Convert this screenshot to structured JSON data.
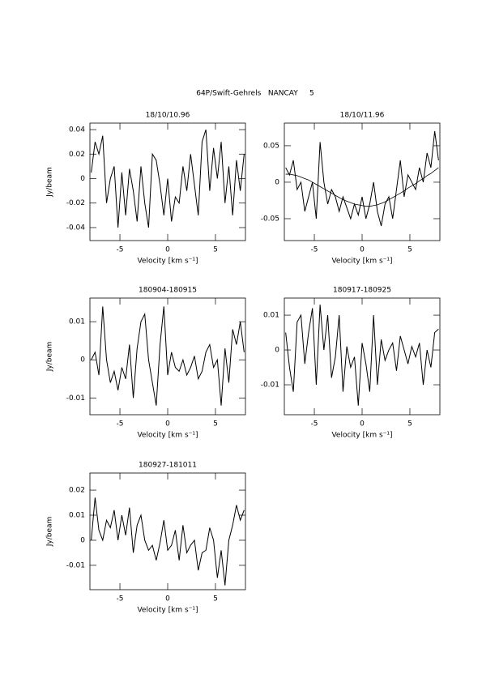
{
  "title": "64P/Swift-Gehrels   NANCAY     5",
  "chart_data": [
    {
      "type": "line",
      "title": "18/10/10.96",
      "xlabel": "Velocity [km s⁻¹]",
      "ylabel": "Jy/beam",
      "x": [
        -8,
        -7.6,
        -7.2,
        -6.8,
        -6.4,
        -6,
        -5.6,
        -5.2,
        -4.8,
        -4.4,
        -4,
        -3.6,
        -3.2,
        -2.8,
        -2.4,
        -2,
        -1.6,
        -1.2,
        -0.8,
        -0.4,
        0,
        0.4,
        0.8,
        1.2,
        1.6,
        2,
        2.4,
        2.8,
        3.2,
        3.6,
        4,
        4.4,
        4.8,
        5.2,
        5.6,
        6,
        6.4,
        6.8,
        7.2,
        7.6,
        8
      ],
      "series": [
        {
          "color": "#000000",
          "values": [
            0.005,
            0.03,
            0.02,
            0.035,
            -0.02,
            0.0,
            0.01,
            -0.04,
            0.005,
            -0.03,
            0.008,
            -0.01,
            -0.035,
            0.01,
            -0.02,
            -0.04,
            0.02,
            0.015,
            -0.005,
            -0.03,
            0.0,
            -0.035,
            -0.015,
            -0.02,
            0.01,
            -0.01,
            0.02,
            -0.005,
            -0.03,
            0.03,
            0.04,
            -0.01,
            0.025,
            0.0,
            0.03,
            -0.02,
            0.01,
            -0.03,
            0.015,
            -0.01,
            0.02
          ]
        }
      ],
      "xlim": [
        -8.14,
        8.14
      ],
      "xticks": [
        -5,
        0,
        5
      ],
      "ylim": [
        -0.0506,
        0.0453
      ],
      "yticks": [
        -0.04,
        -0.02,
        0,
        0.02,
        0.04
      ]
    },
    {
      "type": "line",
      "title": "18/10/11.96",
      "xlabel": "Velocity [km s⁻¹]",
      "x": [
        -8,
        -7.6,
        -7.2,
        -6.8,
        -6.4,
        -6,
        -5.6,
        -5.2,
        -4.8,
        -4.4,
        -4,
        -3.6,
        -3.2,
        -2.8,
        -2.4,
        -2,
        -1.6,
        -1.2,
        -0.8,
        -0.4,
        0,
        0.4,
        0.8,
        1.2,
        1.6,
        2,
        2.4,
        2.8,
        3.2,
        3.6,
        4,
        4.4,
        4.8,
        5.2,
        5.6,
        6,
        6.4,
        6.8,
        7.2,
        7.6,
        8
      ],
      "series": [
        {
          "color": "#000000",
          "values": [
            0.02,
            0.01,
            0.03,
            -0.01,
            0.0,
            -0.04,
            -0.02,
            0.0,
            -0.05,
            0.055,
            0.0,
            -0.03,
            -0.01,
            -0.02,
            -0.04,
            -0.02,
            -0.035,
            -0.05,
            -0.03,
            -0.045,
            -0.02,
            -0.05,
            -0.03,
            0.0,
            -0.04,
            -0.06,
            -0.03,
            -0.02,
            -0.05,
            -0.01,
            0.03,
            -0.02,
            0.01,
            0.0,
            -0.01,
            0.02,
            0.0,
            0.04,
            0.02,
            0.07,
            0.03
          ]
        },
        {
          "color": "#000000",
          "values": [
            0.011,
            0.011,
            0.01,
            0.009,
            0.007,
            0.005,
            0.003,
            0.0,
            -0.003,
            -0.006,
            -0.009,
            -0.012,
            -0.015,
            -0.018,
            -0.021,
            -0.024,
            -0.026,
            -0.028,
            -0.03,
            -0.031,
            -0.032,
            -0.033,
            -0.033,
            -0.032,
            -0.031,
            -0.029,
            -0.027,
            -0.024,
            -0.021,
            -0.018,
            -0.015,
            -0.012,
            -0.008,
            -0.005,
            -0.002,
            0.002,
            0.005,
            0.009,
            0.012,
            0.016,
            0.02
          ]
        }
      ],
      "xlim": [
        -8.14,
        8.14
      ],
      "xticks": [
        -5,
        0,
        5
      ],
      "ylim": [
        -0.08,
        0.081
      ],
      "yticks": [
        -0.05,
        0,
        0.05
      ]
    },
    {
      "type": "line",
      "title": "180904-180915",
      "xlabel": "Velocity [km s⁻¹]",
      "ylabel": "Jy/beam",
      "x": [
        -8,
        -7.6,
        -7.2,
        -6.8,
        -6.4,
        -6,
        -5.6,
        -5.2,
        -4.8,
        -4.4,
        -4,
        -3.6,
        -3.2,
        -2.8,
        -2.4,
        -2,
        -1.6,
        -1.2,
        -0.8,
        -0.4,
        0,
        0.4,
        0.8,
        1.2,
        1.6,
        2,
        2.4,
        2.8,
        3.2,
        3.6,
        4,
        4.4,
        4.8,
        5.2,
        5.6,
        6,
        6.4,
        6.8,
        7.2,
        7.6,
        8
      ],
      "series": [
        {
          "color": "#000000",
          "values": [
            0.0,
            0.002,
            -0.004,
            0.014,
            0.0,
            -0.006,
            -0.003,
            -0.008,
            -0.002,
            -0.005,
            0.004,
            -0.01,
            0.003,
            0.01,
            0.012,
            0.0,
            -0.006,
            -0.012,
            0.004,
            0.014,
            -0.004,
            0.002,
            -0.002,
            -0.003,
            0.0,
            -0.004,
            -0.002,
            0.001,
            -0.005,
            -0.003,
            0.002,
            0.004,
            -0.002,
            0.0,
            -0.012,
            0.003,
            -0.006,
            0.008,
            0.004,
            0.01,
            0.002
          ]
        }
      ],
      "xlim": [
        -8.14,
        8.14
      ],
      "xticks": [
        -5,
        0,
        5
      ],
      "ylim": [
        -0.0144,
        0.0162
      ],
      "yticks": [
        -0.01,
        0,
        0.01
      ]
    },
    {
      "type": "line",
      "title": "180917-180925",
      "xlabel": "Velocity [km s⁻¹]",
      "x": [
        -8,
        -7.6,
        -7.2,
        -6.8,
        -6.4,
        -6,
        -5.6,
        -5.2,
        -4.8,
        -4.4,
        -4,
        -3.6,
        -3.2,
        -2.8,
        -2.4,
        -2,
        -1.6,
        -1.2,
        -0.8,
        -0.4,
        0,
        0.4,
        0.8,
        1.2,
        1.6,
        2,
        2.4,
        2.8,
        3.2,
        3.6,
        4,
        4.4,
        4.8,
        5.2,
        5.6,
        6,
        6.4,
        6.8,
        7.2,
        7.6,
        8
      ],
      "series": [
        {
          "color": "#000000",
          "values": [
            0.005,
            -0.005,
            -0.012,
            0.008,
            0.01,
            -0.004,
            0.005,
            0.012,
            -0.01,
            0.013,
            0.0,
            0.01,
            -0.008,
            -0.002,
            0.01,
            -0.012,
            0.001,
            -0.005,
            -0.002,
            -0.016,
            0.002,
            -0.004,
            -0.012,
            0.01,
            -0.01,
            0.003,
            -0.003,
            0.0,
            0.002,
            -0.006,
            0.004,
            0.0,
            -0.004,
            0.001,
            -0.002,
            0.002,
            -0.01,
            0.0,
            -0.005,
            0.005,
            0.006
          ]
        }
      ],
      "xlim": [
        -8.14,
        8.14
      ],
      "xticks": [
        -5,
        0,
        5
      ],
      "ylim": [
        -0.0186,
        0.0149
      ],
      "yticks": [
        -0.01,
        0,
        0.01
      ]
    },
    {
      "type": "line",
      "title": "180927-181011",
      "xlabel": "Velocity [km s⁻¹]",
      "ylabel": "Jy/beam",
      "x": [
        -8,
        -7.6,
        -7.2,
        -6.8,
        -6.4,
        -6,
        -5.6,
        -5.2,
        -4.8,
        -4.4,
        -4,
        -3.6,
        -3.2,
        -2.8,
        -2.4,
        -2,
        -1.6,
        -1.2,
        -0.8,
        -0.4,
        0,
        0.4,
        0.8,
        1.2,
        1.6,
        2,
        2.4,
        2.8,
        3.2,
        3.6,
        4,
        4.4,
        4.8,
        5.2,
        5.6,
        6,
        6.4,
        6.8,
        7.2,
        7.6,
        8
      ],
      "series": [
        {
          "color": "#000000",
          "values": [
            0.0,
            0.017,
            0.004,
            0.0,
            0.008,
            0.005,
            0.012,
            0.0,
            0.01,
            0.002,
            0.013,
            -0.005,
            0.006,
            0.01,
            0.0,
            -0.004,
            -0.002,
            -0.008,
            -0.001,
            0.008,
            -0.004,
            -0.002,
            0.004,
            -0.008,
            0.006,
            -0.005,
            -0.002,
            0.0,
            -0.012,
            -0.005,
            -0.004,
            0.005,
            0.0,
            -0.015,
            -0.004,
            -0.018,
            0.0,
            0.006,
            0.014,
            0.008,
            0.012
          ]
        }
      ],
      "xlim": [
        -8.14,
        8.14
      ],
      "xticks": [
        -5,
        0,
        5
      ],
      "ylim": [
        -0.0197,
        0.0268
      ],
      "yticks": [
        -0.01,
        0,
        0.01,
        0.02
      ]
    }
  ]
}
